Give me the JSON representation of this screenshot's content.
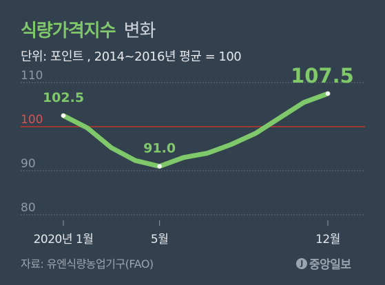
{
  "title": {
    "main": "식량가격지수",
    "sub": "변화"
  },
  "unit_line": "단위: 포인트 , 2014~2016년 평균 = 100",
  "source": "자료: 유엔식량농업기구(FAO)",
  "brand": {
    "mark": "J",
    "name": "중앙일보"
  },
  "colors": {
    "background": "#33404d",
    "line": "#7fc96a",
    "reference_line": "#c0392b",
    "grid": "#7a8591",
    "text": "#e6eaee"
  },
  "chart_data": {
    "type": "line",
    "title": "식량가격지수 변화",
    "ylabel": "",
    "ylim": [
      80,
      115
    ],
    "yticks": [
      80,
      90,
      100,
      110
    ],
    "reference_value": 100,
    "grid": true,
    "x": [
      1,
      2,
      3,
      4,
      5,
      6,
      7,
      8,
      9,
      10,
      11,
      12
    ],
    "xtick_labels": [
      {
        "x": 1,
        "label": "2020년 1월"
      },
      {
        "x": 5,
        "label": "5월"
      },
      {
        "x": 12,
        "label": "12월"
      }
    ],
    "series": [
      {
        "values": [
          102.5,
          99.7,
          95.2,
          92.3,
          91.0,
          93.0,
          94.0,
          96.0,
          98.5,
          102.0,
          105.5,
          107.5
        ]
      }
    ],
    "data_labels": [
      {
        "x": 1,
        "label": "102.5"
      },
      {
        "x": 5,
        "label": "91.0"
      },
      {
        "x": 12,
        "label": "107.5"
      }
    ]
  }
}
